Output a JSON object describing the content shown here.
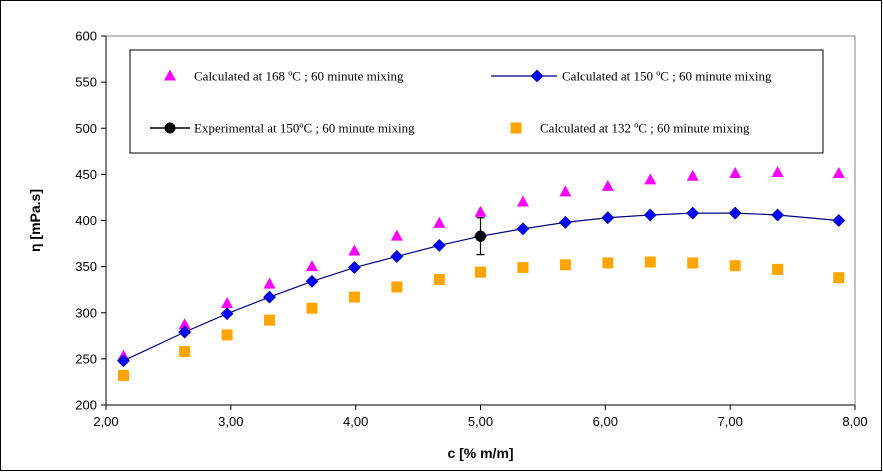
{
  "chart_data": {
    "type": "scatter",
    "xlabel": "c [% m/m]",
    "ylabel": "η [mPa.s]",
    "xlim": [
      2.0,
      8.0
    ],
    "ylim": [
      200,
      600
    ],
    "x_ticks": [
      "2,00",
      "3,00",
      "4,00",
      "5,00",
      "6,00",
      "7,00",
      "8,00"
    ],
    "y_ticks": [
      "200",
      "250",
      "300",
      "350",
      "400",
      "450",
      "500",
      "550",
      "600"
    ],
    "grid": false,
    "legend_position": "top",
    "series": [
      {
        "name": "Calculated at 168 ºC ;  60 minute mixing",
        "marker": "triangle",
        "color": "#ff00ff",
        "x": [
          2.14,
          2.63,
          2.97,
          3.31,
          3.65,
          3.99,
          4.33,
          4.67,
          5.0,
          5.34,
          5.68,
          6.02,
          6.36,
          6.7,
          7.04,
          7.38,
          7.87
        ],
        "y": [
          253,
          287,
          310,
          331,
          350,
          367,
          383,
          397,
          409,
          420,
          431,
          437,
          444,
          448,
          451,
          452,
          451
        ]
      },
      {
        "name": "Calculated at 150 ºC ;  60 minute mixing",
        "marker": "diamond",
        "line": true,
        "color": "#0000ff",
        "line_color": "#000080",
        "x": [
          2.14,
          2.63,
          2.97,
          3.31,
          3.65,
          3.99,
          4.33,
          4.67,
          5.0,
          5.34,
          5.68,
          6.02,
          6.36,
          6.7,
          7.04,
          7.38,
          7.87
        ],
        "y": [
          248,
          279,
          299,
          317,
          334,
          349,
          361,
          373,
          383,
          391,
          398,
          403,
          406,
          408,
          408,
          406,
          400
        ]
      },
      {
        "name": "Experimental at 150ºC ; 60 minute mixing",
        "marker": "circle",
        "color": "#000000",
        "x": [
          5.0
        ],
        "y": [
          383
        ],
        "error": [
          20
        ]
      },
      {
        "name": "Calculated at 132 ºC ; 60 minute mixing",
        "marker": "square",
        "color": "#ffa500",
        "x": [
          2.14,
          2.63,
          2.97,
          3.31,
          3.65,
          3.99,
          4.33,
          4.67,
          5.0,
          5.34,
          5.68,
          6.02,
          6.36,
          6.7,
          7.04,
          7.38,
          7.87
        ],
        "y": [
          232,
          258,
          276,
          292,
          305,
          317,
          328,
          336,
          344,
          349,
          352,
          354,
          355,
          354,
          351,
          347,
          338
        ]
      }
    ]
  }
}
